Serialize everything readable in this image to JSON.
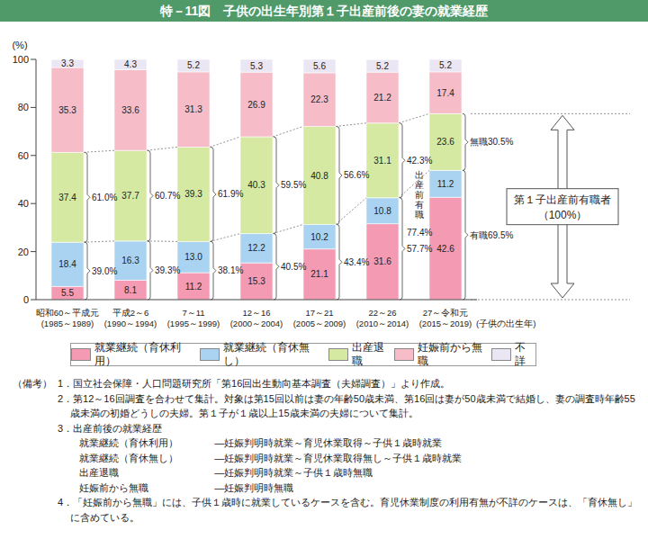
{
  "chart_data": {
    "type": "bar",
    "title": "特－11図　子供の出生年別第１子出産前後の妻の就業経歴",
    "y_label": "(%)",
    "x_label": "(子供の出生年)",
    "categories": [
      "昭和60～平成元(1985～1989)",
      "平成2～6(1990～1994)",
      "7～11(1995～1999)",
      "12～16(2000～2004)",
      "17～21(2005～2009)",
      "22～26(2010～2014)",
      "27～令和元(2015～2019)"
    ],
    "series": [
      {
        "name": "就業継続（育休利用）",
        "color": "#f49ab3",
        "values": [
          5.5,
          8.1,
          11.2,
          15.3,
          21.1,
          31.6,
          42.6
        ],
        "value_labels": [
          "5.5",
          "8.1",
          "11.2",
          "15.3",
          "21.1",
          "31.6",
          "42.6"
        ]
      },
      {
        "name": "就業継続（育休無し）",
        "color": "#a9d3f0",
        "values": [
          18.4,
          16.3,
          13.0,
          12.2,
          10.2,
          10.8,
          11.2
        ],
        "value_labels": [
          "18.4",
          "16.3",
          "13.0",
          "12.2",
          "10.2",
          "10.8",
          "11.2"
        ]
      },
      {
        "name": "出産退職",
        "color": "#d6e9a2",
        "values": [
          37.4,
          37.7,
          39.3,
          40.3,
          40.8,
          31.1,
          23.6
        ],
        "value_labels": [
          "37.4",
          "37.7",
          "39.3",
          "40.3",
          "40.8",
          "31.1",
          "23.6"
        ]
      },
      {
        "name": "妊娠前から無職",
        "color": "#f6bcc8",
        "values": [
          35.3,
          33.6,
          31.3,
          26.9,
          22.3,
          21.2,
          17.4
        ],
        "value_labels": [
          "35.3",
          "33.6",
          "31.3",
          "26.9",
          "22.3",
          "21.2",
          "17.4"
        ]
      },
      {
        "name": "不詳",
        "color": "#ebe6f3",
        "values": [
          3.3,
          4.3,
          5.2,
          5.3,
          5.6,
          5.2,
          5.2
        ],
        "value_labels": [
          "3.3",
          "4.3",
          "5.2",
          "5.3",
          "5.6",
          "5.2",
          "5.2"
        ]
      }
    ],
    "ylim": [
      0,
      100
    ],
    "yticks": [
      0,
      20,
      40,
      60,
      80,
      100
    ],
    "grid": false,
    "stacked": true,
    "data_labels": true,
    "legend": "bottom",
    "annotations": {
      "bracket_upper": [
        "61.0%",
        "60.7%",
        "61.9%",
        "59.5%",
        "56.6%",
        "42.3%",
        "無職30.5%"
      ],
      "bracket_lower": [
        "39.0%",
        "39.3%",
        "38.1%",
        "40.5%",
        "43.4%",
        "57.7%",
        "有職69.5%"
      ],
      "employed_label": "出産前有職",
      "employed_value": "77.4%",
      "total_box": [
        "第１子出産前有職者",
        "（100%）"
      ]
    }
  },
  "notes": {
    "heading": "（備考）",
    "items": [
      "1．国立社会保障・人口問題研究所「第16回出生動向基本調査（夫婦調査）」より作成。",
      "2．第12～16回調査を合わせて集計。対象は第15回以前は妻の年齢50歳未満、第16回は妻が50歳未満で結婚し、妻の調査時年齢55歳未満の初婚どうしの夫婦。第１子が１歳以上15歳未満の夫婦について集計。",
      "3．出産前後の就業経歴",
      "4．「妊娠前から無職」には、子供１歳時に就業しているケースを含む。育児休業制度の利用有無が不詳のケースは、「育休無し」に含めている。"
    ],
    "definitions": [
      [
        "就業継続（育休利用）",
        "―妊娠判明時就業～育児休業取得～子供１歳時就業"
      ],
      [
        "就業継続（育休無し）",
        "―妊娠判明時就業～育児休業取得無し～子供１歳時就業"
      ],
      [
        "出産退職",
        "―妊娠判明時就業～子供１歳時無職"
      ],
      [
        "妊娠前から無職",
        "―妊娠判明時無職"
      ]
    ]
  }
}
